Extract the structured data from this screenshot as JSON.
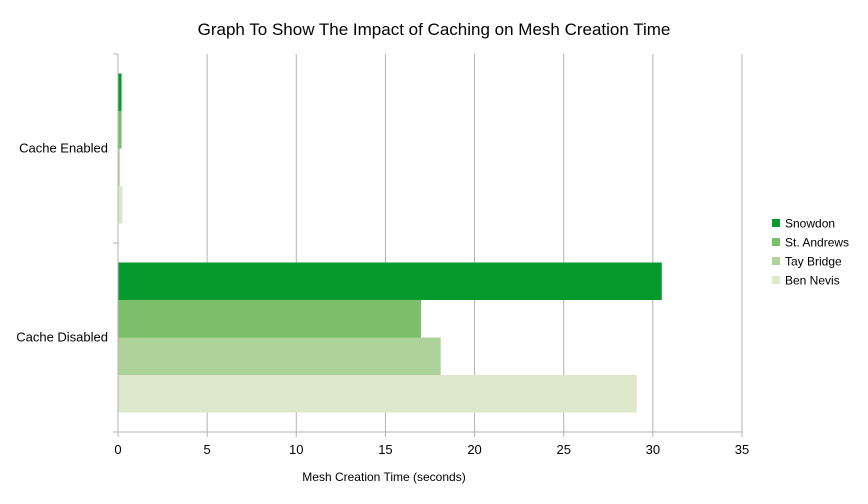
{
  "chart_data": {
    "type": "bar",
    "orientation": "horizontal",
    "title": "Graph To Show The Impact of Caching on Mesh Creation Time",
    "xlabel": "Mesh Creation Time (seconds)",
    "ylabel": "",
    "categories": [
      "Cache Enabled",
      "Cache Disabled"
    ],
    "series": [
      {
        "name": "Snowdon",
        "color": "#069a2e",
        "values": [
          0.2,
          30.5
        ]
      },
      {
        "name": "St. Andrews",
        "color": "#7bbf6a",
        "values": [
          0.2,
          17.0
        ]
      },
      {
        "name": "Tay Bridge",
        "color": "#aed39a",
        "values": [
          0.1,
          18.1
        ]
      },
      {
        "name": "Ben Nevis",
        "color": "#dde8cb",
        "values": [
          0.25,
          29.1
        ]
      }
    ],
    "xlim": [
      0,
      35
    ],
    "xticks": [
      0,
      5,
      10,
      15,
      20,
      25,
      30,
      35
    ],
    "grid": true,
    "legend_position": "right"
  }
}
